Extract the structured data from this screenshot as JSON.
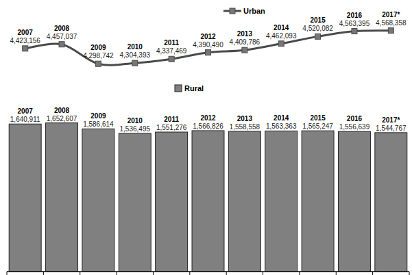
{
  "chart_data": [
    {
      "type": "line",
      "categories": [
        "2007",
        "2008",
        "2009",
        "2010",
        "2011",
        "2012",
        "2013",
        "2014",
        "2015",
        "2016",
        "2017*"
      ],
      "series": [
        {
          "name": "Urban",
          "color": "#4a4a4a",
          "marker": "square",
          "line_style": "solid",
          "values": [
            4423156,
            4457037,
            4298742,
            4304393,
            4337469,
            4390490,
            4409786,
            4462093,
            4520082,
            4563395,
            4568358
          ],
          "value_labels": [
            "4,423,156",
            "4,457,037",
            "4,298,742",
            "4,304,393",
            "4,337,469",
            "4,390,490",
            "4,409,786",
            "4,462,093",
            "4,520,082",
            "4,563,395",
            "4,568,358"
          ]
        }
      ],
      "ylim": [
        4150000,
        4650000
      ],
      "data_labels": true,
      "tick_labels": false,
      "grid": false,
      "legend": "top"
    },
    {
      "type": "bar",
      "categories": [
        "2007",
        "2008",
        "2009",
        "2010",
        "2011",
        "2012",
        "2013",
        "2014",
        "2015",
        "2016",
        "2017*"
      ],
      "series": [
        {
          "name": "Rural",
          "color": "#808080",
          "values": [
            1640911,
            1652607,
            1586614,
            1536495,
            1551276,
            1566826,
            1558558,
            1563363,
            1565247,
            1556639,
            1544767
          ],
          "value_labels": [
            "1,640,911",
            "1,652,607",
            "1,586,614",
            "1,536,495",
            "1,551,276",
            "1,566,826",
            "1,558,558",
            "1,563,363",
            "1,565,247",
            "1,556,639",
            "1,544,767"
          ]
        }
      ],
      "ylim": [
        0,
        2000000
      ],
      "data_labels": true,
      "tick_labels": false,
      "grid": false,
      "legend": "top"
    }
  ]
}
